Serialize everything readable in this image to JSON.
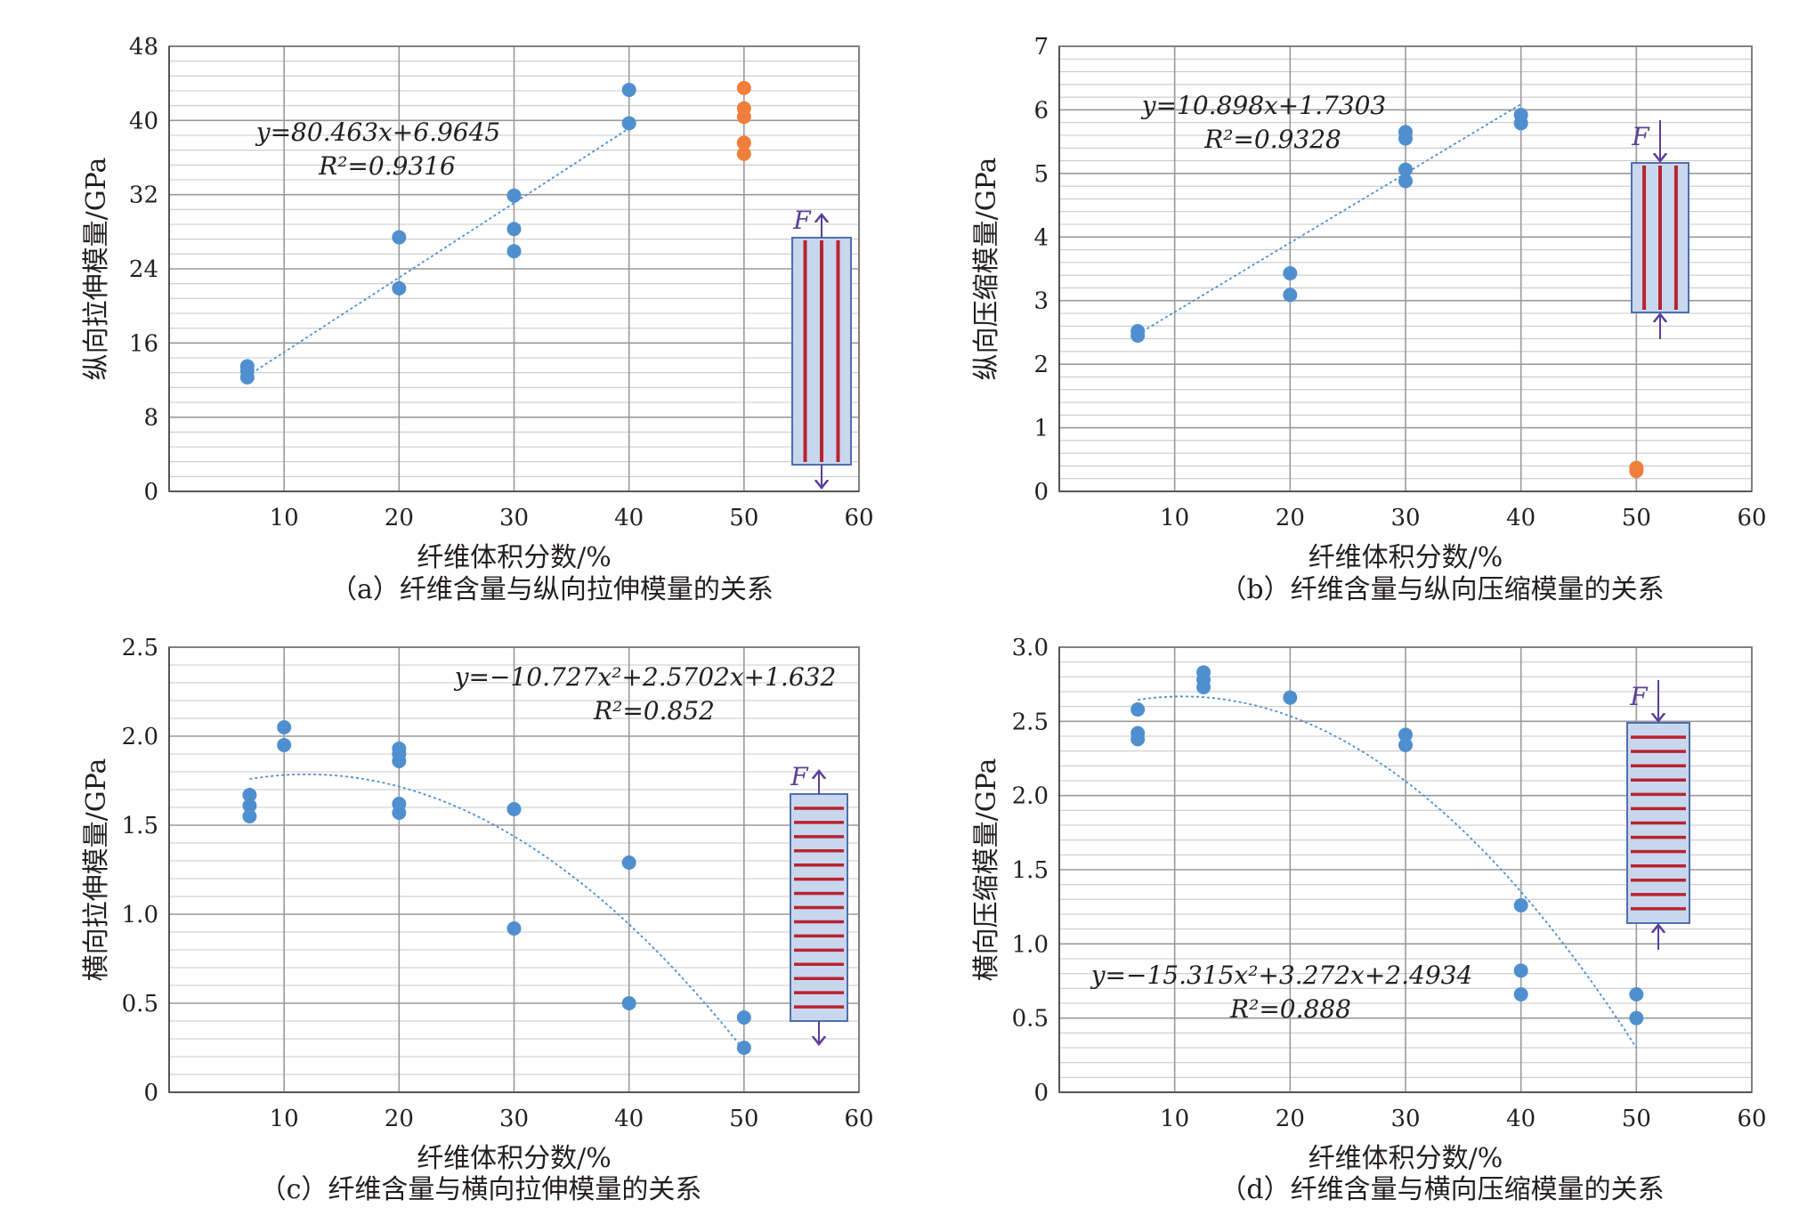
{
  "colors": {
    "point_blue": "#4f8fcf",
    "point_orange": "#ef7f3a",
    "trend": "#4f8fcf",
    "grid_major": "#9a9a9a",
    "grid_minor": "#c9c9c9",
    "specimen_fill": "#c9d7ee",
    "specimen_edge": "#4f6fae",
    "fiber": "#b8242f",
    "arrow": "#5b3f97"
  },
  "chart_data": [
    {
      "id": "a",
      "type": "scatter",
      "caption": "（a）纤维含量与纵向拉伸模量的关系",
      "xlabel": "纤维体积分数/%",
      "ylabel": "纵向拉伸模量/GPa",
      "xlim": [
        0,
        60
      ],
      "ylim": [
        0,
        48
      ],
      "xticks": [
        "10",
        "20",
        "30",
        "40",
        "50",
        "60"
      ],
      "yticks": [
        "0",
        "8",
        "16",
        "24",
        "32",
        "40",
        "48"
      ],
      "grid": true,
      "series": [
        {
          "color": "blue",
          "points": [
            [
              6.8,
              12.3
            ],
            [
              6.8,
              13.0
            ],
            [
              6.8,
              13.5
            ],
            [
              20,
              21.9
            ],
            [
              20,
              27.4
            ],
            [
              30,
              25.9
            ],
            [
              30,
              28.3
            ],
            [
              30,
              31.9
            ],
            [
              40,
              39.7
            ],
            [
              40,
              43.3
            ]
          ]
        },
        {
          "color": "orange",
          "points": [
            [
              50,
              36.4
            ],
            [
              50,
              37.6
            ],
            [
              50,
              40.4
            ],
            [
              50,
              41.3
            ],
            [
              50,
              43.5
            ]
          ]
        }
      ],
      "trendline": {
        "kind": "linear",
        "a": 80.463,
        "b": 6.9645,
        "x_range": [
          0.068,
          0.4
        ],
        "x_scale": 100
      },
      "equation_line1": "y=80.463x+6.9645",
      "equation_line2": "R²=0.9316",
      "specimen": {
        "orientation": "longitudinal",
        "load": "tension",
        "label": "F"
      }
    },
    {
      "id": "b",
      "type": "scatter",
      "caption": "（b）纤维含量与纵向压缩模量的关系",
      "xlabel": "纤维体积分数/%",
      "ylabel": "纵向压缩模量/GPa",
      "xlim": [
        0,
        60
      ],
      "ylim": [
        0,
        7
      ],
      "xticks": [
        "10",
        "20",
        "30",
        "40",
        "50",
        "60"
      ],
      "yticks": [
        "0",
        "1",
        "2",
        "3",
        "4",
        "5",
        "6",
        "7"
      ],
      "grid": true,
      "series": [
        {
          "color": "blue",
          "points": [
            [
              6.8,
              2.45
            ],
            [
              6.8,
              2.52
            ],
            [
              20,
              3.09
            ],
            [
              20,
              3.43
            ],
            [
              30,
              4.88
            ],
            [
              30,
              5.06
            ],
            [
              30,
              5.55
            ],
            [
              30,
              5.65
            ],
            [
              40,
              5.79
            ],
            [
              40,
              5.92
            ]
          ]
        },
        {
          "color": "orange",
          "points": [
            [
              50,
              0.32
            ],
            [
              50,
              0.37
            ]
          ]
        }
      ],
      "trendline": {
        "kind": "linear",
        "a": 10.898,
        "b": 1.7303,
        "x_range": [
          0.068,
          0.4
        ],
        "x_scale": 100
      },
      "equation_line1": "y=10.898x+1.7303",
      "equation_line2": "R²=0.9328",
      "specimen": {
        "orientation": "longitudinal",
        "load": "compression",
        "label": "F"
      }
    },
    {
      "id": "c",
      "type": "scatter",
      "caption": "（c）纤维含量与横向拉伸模量的关系",
      "xlabel": "纤维体积分数/%",
      "ylabel": "横向拉伸模量/GPa",
      "xlim": [
        0,
        60
      ],
      "ylim": [
        0,
        2.5
      ],
      "xticks": [
        "10",
        "20",
        "30",
        "40",
        "50",
        "60"
      ],
      "yticks": [
        "0",
        "0.5",
        "1.0",
        "1.5",
        "2.0",
        "2.5"
      ],
      "grid": true,
      "series": [
        {
          "color": "blue",
          "points": [
            [
              7,
              1.55
            ],
            [
              7,
              1.61
            ],
            [
              7,
              1.67
            ],
            [
              10,
              1.95
            ],
            [
              10,
              2.05
            ],
            [
              20,
              1.57
            ],
            [
              20,
              1.62
            ],
            [
              20,
              1.86
            ],
            [
              20,
              1.9
            ],
            [
              20,
              1.93
            ],
            [
              30,
              0.92
            ],
            [
              30,
              1.59
            ],
            [
              40,
              0.5
            ],
            [
              40,
              1.29
            ],
            [
              50,
              0.25
            ],
            [
              50,
              0.42
            ]
          ]
        }
      ],
      "trendline": {
        "kind": "quadratic",
        "a": -10.727,
        "b": 2.5702,
        "c": 1.632,
        "x_range": [
          0.07,
          0.5
        ],
        "x_scale": 100
      },
      "equation_line1": "y=−10.727x²+2.5702x+1.632",
      "equation_line2": "R²=0.852",
      "specimen": {
        "orientation": "transverse",
        "load": "tension",
        "label": "F"
      }
    },
    {
      "id": "d",
      "type": "scatter",
      "caption": "（d）纤维含量与横向压缩模量的关系",
      "xlabel": "纤维体积分数/%",
      "ylabel": "横向压缩模量/GPa",
      "xlim": [
        0,
        60
      ],
      "ylim": [
        0,
        3.0
      ],
      "xticks": [
        "10",
        "20",
        "30",
        "40",
        "50",
        "60"
      ],
      "yticks": [
        "0",
        "0.5",
        "1.0",
        "1.5",
        "2.0",
        "2.5",
        "3.0"
      ],
      "grid": true,
      "series": [
        {
          "color": "blue",
          "points": [
            [
              6.8,
              2.38
            ],
            [
              6.8,
              2.42
            ],
            [
              6.8,
              2.58
            ],
            [
              12.5,
              2.73
            ],
            [
              12.5,
              2.78
            ],
            [
              12.5,
              2.83
            ],
            [
              20,
              2.66
            ],
            [
              30,
              2.34
            ],
            [
              30,
              2.41
            ],
            [
              40,
              0.66
            ],
            [
              40,
              0.82
            ],
            [
              40,
              1.26
            ],
            [
              50,
              0.5
            ],
            [
              50,
              0.66
            ]
          ]
        }
      ],
      "trendline": {
        "kind": "quadratic",
        "a": -15.315,
        "b": 3.272,
        "c": 2.4934,
        "x_range": [
          0.068,
          0.5
        ],
        "x_scale": 100
      },
      "equation_line1": "y=−15.315x²+3.272x+2.4934",
      "equation_line2": "R²=0.888",
      "specimen": {
        "orientation": "transverse",
        "load": "compression",
        "label": "F"
      }
    }
  ]
}
